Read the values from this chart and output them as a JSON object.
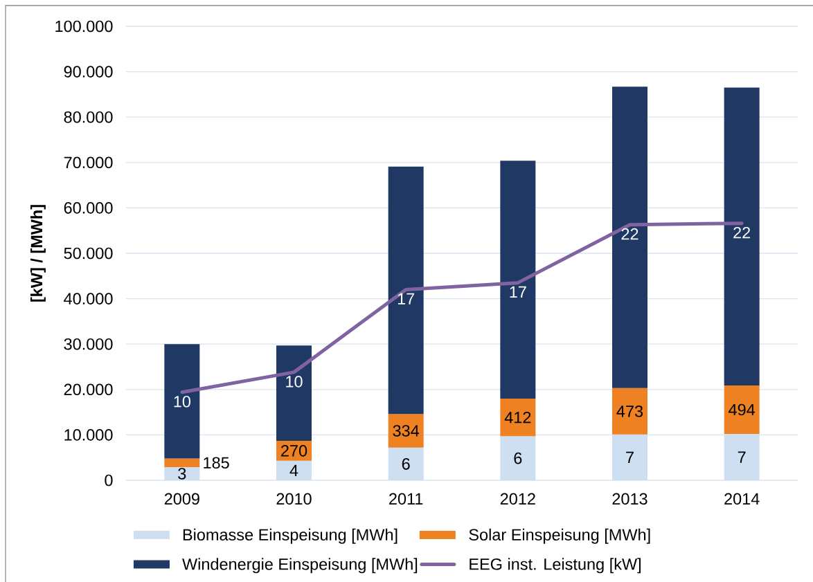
{
  "chart_data": {
    "type": "bar",
    "stacked": true,
    "ylabel": "[kW] / [MWh]",
    "categories": [
      "2009",
      "2010",
      "2011",
      "2012",
      "2013",
      "2014"
    ],
    "series": [
      {
        "name": "Biomasse Einspeisung [MWh]",
        "color": "#cddff0",
        "values": [
          2900,
          4300,
          7200,
          9700,
          10100,
          10200
        ]
      },
      {
        "name": "Solar Einspeisung [MWh]",
        "color": "#ee8122",
        "values": [
          1900,
          4400,
          7400,
          8300,
          10200,
          10700
        ]
      },
      {
        "name": "Windenergie Einspeisung [MWh]",
        "color": "#203864",
        "values": [
          25200,
          21000,
          54500,
          52400,
          66400,
          65600
        ]
      },
      {
        "name": "EEG inst. Leistung [kW]",
        "type": "line",
        "color": "#8064a2",
        "values": [
          19400,
          23800,
          42000,
          43500,
          56300,
          56600
        ]
      }
    ],
    "annotations": [
      {
        "text": "3",
        "x": "2009",
        "y": 2900
      },
      {
        "text": "4",
        "x": "2010",
        "y": 4300
      },
      {
        "text": "6",
        "x": "2011",
        "y": 7200
      },
      {
        "text": "6",
        "x": "2012",
        "y": 9700
      },
      {
        "text": "7",
        "x": "2013",
        "y": 10100
      },
      {
        "text": "7",
        "x": "2014",
        "y": 10200
      },
      {
        "text": "185",
        "x": "2009",
        "y": 4800
      },
      {
        "text": "270",
        "x": "2010",
        "y": 8700
      },
      {
        "text": "334",
        "x": "2011",
        "y": 14600
      },
      {
        "text": "412",
        "x": "2012",
        "y": 18000
      },
      {
        "text": "473",
        "x": "2013",
        "y": 20300
      },
      {
        "text": "494",
        "x": "2014",
        "y": 20900
      },
      {
        "text": "10",
        "x": "2009",
        "y": 19400
      },
      {
        "text": "10",
        "x": "2010",
        "y": 23800
      },
      {
        "text": "17",
        "x": "2011",
        "y": 42000
      },
      {
        "text": "17",
        "x": "2012",
        "y": 43500
      },
      {
        "text": "22",
        "x": "2013",
        "y": 56300
      },
      {
        "text": "22",
        "x": "2014",
        "y": 56600
      }
    ],
    "ylim": [
      0,
      100000
    ],
    "yticks": [
      0,
      {
        "value": 10000,
        "label": "10.000"
      },
      {
        "value": 20000,
        "label": "20.000"
      },
      {
        "value": 30000,
        "label": "30.000"
      },
      {
        "value": 40000,
        "label": "40.000"
      },
      {
        "value": 50000,
        "label": "50.000"
      },
      {
        "value": 60000,
        "label": "60.000"
      },
      {
        "value": 70000,
        "label": "70.000"
      },
      {
        "value": 80000,
        "label": "80.000"
      },
      {
        "value": 90000,
        "label": "90.000"
      },
      {
        "value": 100000,
        "label": "100.000"
      }
    ],
    "grid": "y",
    "legend": "bottom"
  }
}
